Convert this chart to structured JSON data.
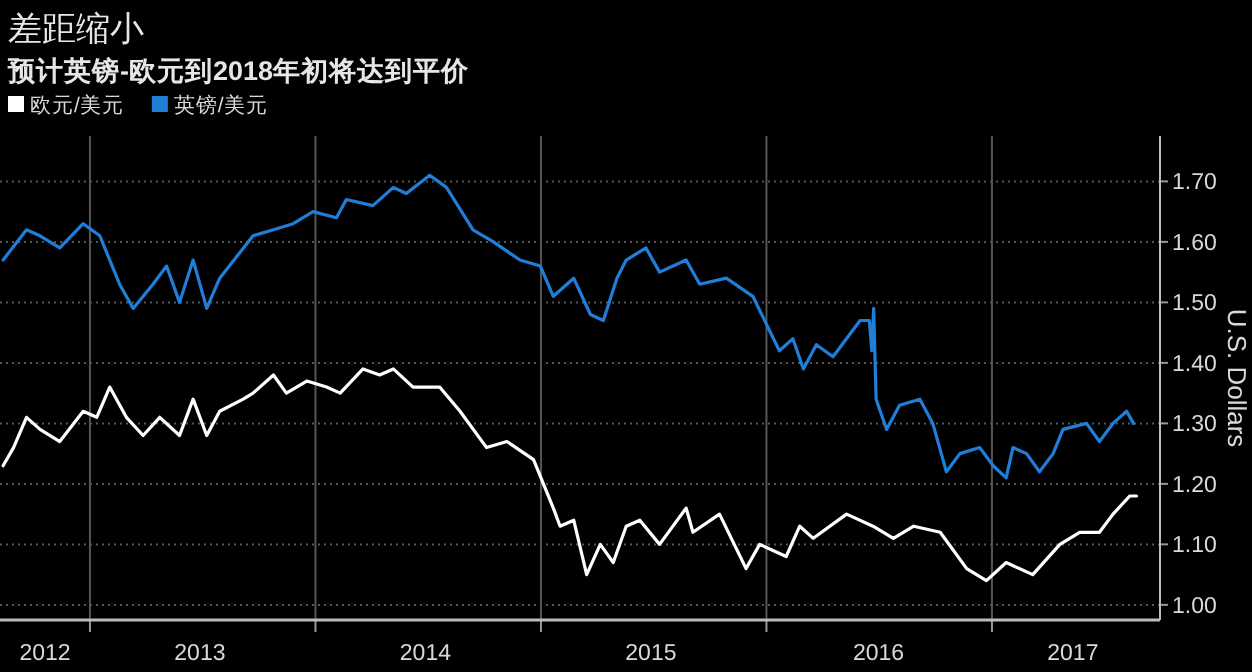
{
  "chart_data": {
    "type": "line",
    "title": "差距缩小",
    "subtitle": "预计英镑-欧元到2018年初将达到平价",
    "ylabel": "U.S. Dollars",
    "legend": "top left",
    "grid": true,
    "line_style": "solid",
    "marker": "none",
    "xlim": [
      "2012-08-08",
      "2017-09-30"
    ],
    "ylim": [
      0.975,
      1.775
    ],
    "xticks": [
      {
        "value": "2012-10-20",
        "label": "2012"
      },
      {
        "value": "2013-01-01",
        "label": null
      },
      {
        "value": "2013-06-28",
        "label": "2013"
      },
      {
        "value": "2014-01-01",
        "label": null
      },
      {
        "value": "2014-06-28",
        "label": "2014"
      },
      {
        "value": "2015-01-01",
        "label": null
      },
      {
        "value": "2015-06-28",
        "label": "2015"
      },
      {
        "value": "2016-01-01",
        "label": null
      },
      {
        "value": "2016-07-01",
        "label": "2016"
      },
      {
        "value": "2017-01-01",
        "label": null
      },
      {
        "value": "2017-05-12",
        "label": "2017"
      }
    ],
    "yticks": [
      {
        "value": 1,
        "label": "1.00"
      },
      {
        "value": 1.1,
        "label": "1.10"
      },
      {
        "value": 1.2,
        "label": "1.20"
      },
      {
        "value": 1.3,
        "label": "1.30"
      },
      {
        "value": 1.4,
        "label": "1.40"
      },
      {
        "value": 1.5,
        "label": "1.50"
      },
      {
        "value": 1.6,
        "label": "1.60"
      },
      {
        "value": 1.7,
        "label": "1.70"
      }
    ],
    "series": [
      {
        "name": "欧元/美元",
        "color": "#ffffff",
        "x": [
          "2012-08-13",
          "2012-08-30",
          "2012-09-20",
          "2012-10-12",
          "2012-11-13",
          "2012-12-21",
          "2013-01-12",
          "2013-02-02",
          "2013-03-01",
          "2013-03-28",
          "2013-04-24",
          "2013-05-26",
          "2013-06-17",
          "2013-07-09",
          "2013-07-30",
          "2013-09-06",
          "2013-09-22",
          "2013-10-25",
          "2013-11-15",
          "2013-12-18",
          "2014-01-19",
          "2014-02-10",
          "2014-03-19",
          "2014-04-15",
          "2014-05-07",
          "2014-06-08",
          "2014-07-21",
          "2014-08-23",
          "2014-10-05",
          "2014-11-07",
          "2014-12-20",
          "2015-01-21",
          "2015-02-01",
          "2015-02-23",
          "2015-03-16",
          "2015-04-07",
          "2015-04-28",
          "2015-05-19",
          "2015-06-10",
          "2015-07-12",
          "2015-08-24",
          "2015-09-04",
          "2015-10-17",
          "2015-11-29",
          "2015-12-21",
          "2016-02-02",
          "2016-02-24",
          "2016-03-17",
          "2016-05-10",
          "2016-06-22",
          "2016-07-25",
          "2016-08-27",
          "2016-10-09",
          "2016-11-21",
          "2016-12-23",
          "2017-01-24",
          "2017-03-08",
          "2017-04-21",
          "2017-05-23",
          "2017-06-24",
          "2017-07-16",
          "2017-08-12",
          "2017-08-23"
        ],
        "values": [
          1.23,
          1.26,
          1.31,
          1.29,
          1.27,
          1.32,
          1.31,
          1.36,
          1.31,
          1.28,
          1.31,
          1.28,
          1.34,
          1.28,
          1.32,
          1.34,
          1.35,
          1.38,
          1.35,
          1.37,
          1.36,
          1.35,
          1.39,
          1.38,
          1.39,
          1.36,
          1.36,
          1.32,
          1.26,
          1.27,
          1.24,
          1.16,
          1.13,
          1.14,
          1.05,
          1.1,
          1.07,
          1.13,
          1.14,
          1.1,
          1.16,
          1.12,
          1.15,
          1.06,
          1.1,
          1.08,
          1.13,
          1.11,
          1.15,
          1.13,
          1.11,
          1.13,
          1.12,
          1.06,
          1.04,
          1.07,
          1.05,
          1.1,
          1.12,
          1.12,
          1.15,
          1.18,
          1.18
        ]
      },
      {
        "name": "英镑/美元",
        "color": "#1f7fd8",
        "x": [
          "2012-08-13",
          "2012-09-20",
          "2012-10-12",
          "2012-11-13",
          "2012-12-21",
          "2013-01-17",
          "2013-02-18",
          "2013-03-12",
          "2013-04-13",
          "2013-05-05",
          "2013-05-26",
          "2013-06-17",
          "2013-07-09",
          "2013-07-30",
          "2013-09-22",
          "2013-10-25",
          "2013-11-26",
          "2013-12-28",
          "2014-02-04",
          "2014-02-20",
          "2014-04-04",
          "2014-05-07",
          "2014-05-28",
          "2014-07-05",
          "2014-08-01",
          "2014-09-13",
          "2014-10-16",
          "2014-11-28",
          "2014-12-31",
          "2015-01-21",
          "2015-02-23",
          "2015-03-22",
          "2015-04-12",
          "2015-05-04",
          "2015-05-19",
          "2015-06-20",
          "2015-07-12",
          "2015-08-24",
          "2015-09-15",
          "2015-10-28",
          "2015-12-10",
          "2016-01-22",
          "2016-02-13",
          "2016-03-01",
          "2016-03-22",
          "2016-04-18",
          "2016-06-01",
          "2016-06-16",
          "2016-06-20",
          "2016-06-23",
          "2016-06-27",
          "2016-07-14",
          "2016-08-04",
          "2016-09-06",
          "2016-09-27",
          "2016-10-19",
          "2016-11-10",
          "2016-12-12",
          "2017-01-03",
          "2017-01-24",
          "2017-02-04",
          "2017-02-26",
          "2017-03-19",
          "2017-04-10",
          "2017-04-26",
          "2017-06-03",
          "2017-06-24",
          "2017-07-16",
          "2017-08-07",
          "2017-08-18"
        ],
        "values": [
          1.57,
          1.62,
          1.61,
          1.59,
          1.63,
          1.61,
          1.53,
          1.49,
          1.53,
          1.56,
          1.5,
          1.57,
          1.49,
          1.54,
          1.61,
          1.62,
          1.63,
          1.65,
          1.64,
          1.67,
          1.66,
          1.69,
          1.68,
          1.71,
          1.69,
          1.62,
          1.6,
          1.57,
          1.56,
          1.51,
          1.54,
          1.48,
          1.47,
          1.54,
          1.57,
          1.59,
          1.55,
          1.57,
          1.53,
          1.54,
          1.51,
          1.42,
          1.44,
          1.39,
          1.43,
          1.41,
          1.47,
          1.47,
          1.42,
          1.49,
          1.34,
          1.29,
          1.33,
          1.34,
          1.3,
          1.22,
          1.25,
          1.26,
          1.23,
          1.21,
          1.26,
          1.25,
          1.22,
          1.25,
          1.29,
          1.3,
          1.27,
          1.3,
          1.32,
          1.3
        ]
      }
    ]
  }
}
